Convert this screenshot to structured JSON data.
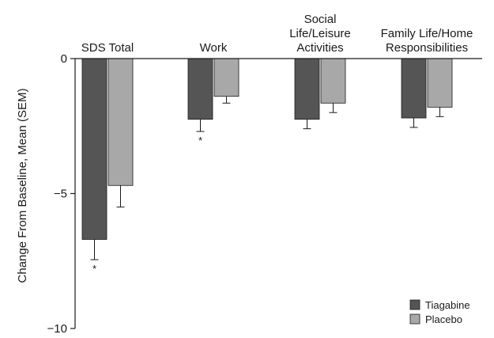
{
  "chart_data": {
    "type": "bar",
    "categories": [
      [
        "SDS Total"
      ],
      [
        "Work"
      ],
      [
        "Social",
        "Life/Leisure",
        "Activities"
      ],
      [
        "Family Life/Home",
        "Responsibilities"
      ]
    ],
    "series": [
      {
        "name": "Tiagabine",
        "color": "#555555",
        "values": [
          -6.7,
          -2.25,
          -2.25,
          -2.2
        ],
        "sem": [
          0.75,
          0.45,
          0.35,
          0.35
        ],
        "significant": [
          true,
          true,
          false,
          false
        ]
      },
      {
        "name": "Placebo",
        "color": "#a8a8a8",
        "values": [
          -4.7,
          -1.4,
          -1.65,
          -1.8
        ],
        "sem": [
          0.8,
          0.25,
          0.35,
          0.35
        ],
        "significant": [
          false,
          false,
          false,
          false
        ]
      }
    ],
    "ylabel": "Change From Baseline, Mean (SEM)",
    "ylim": [
      -10,
      0
    ],
    "yticks": [
      0,
      -5,
      -10
    ],
    "ytick_labels": [
      "0",
      "−5",
      "−10"
    ],
    "significance_marker": "*",
    "legend_position": "bottom-right",
    "grid": false
  }
}
